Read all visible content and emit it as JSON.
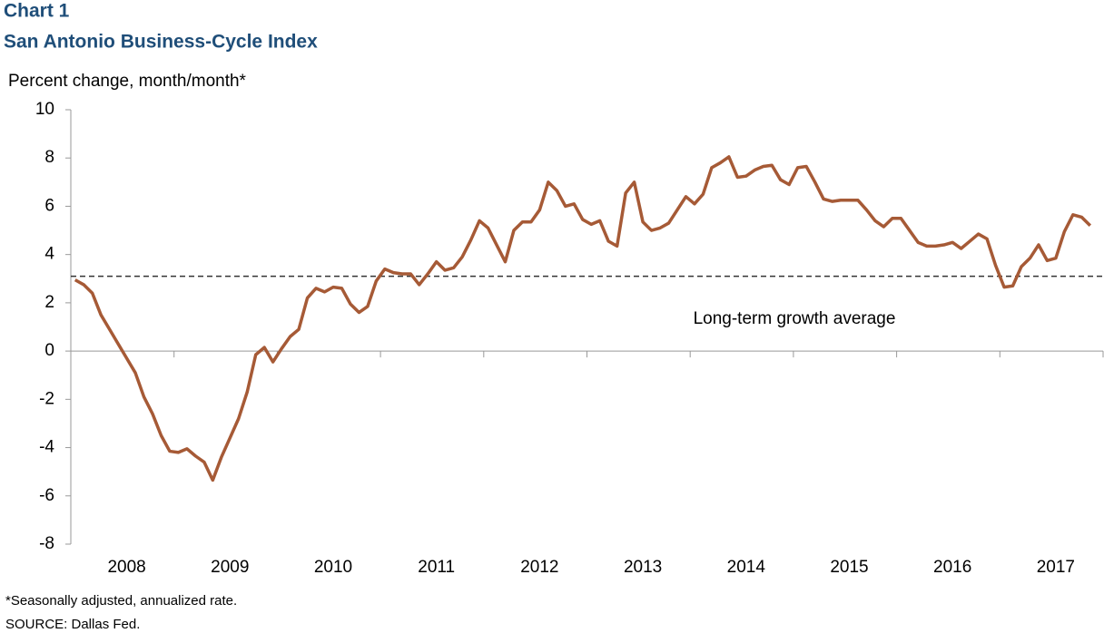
{
  "chart_data": {
    "type": "line",
    "title": "Chart 1",
    "subtitle": "San Antonio Business-Cycle Index",
    "y_label": "Percent change, month/month*",
    "categories": [
      null,
      null,
      null,
      null,
      null,
      null,
      "2008",
      null,
      null,
      null,
      null,
      null,
      null,
      null,
      null,
      null,
      null,
      null,
      "2009",
      null,
      null,
      null,
      null,
      null,
      null,
      null,
      null,
      null,
      null,
      null,
      "2010",
      null,
      null,
      null,
      null,
      null,
      null,
      null,
      null,
      null,
      null,
      null,
      "2011",
      null,
      null,
      null,
      null,
      null,
      null,
      null,
      null,
      null,
      null,
      null,
      "2012",
      null,
      null,
      null,
      null,
      null,
      null,
      null,
      null,
      null,
      null,
      null,
      "2013",
      null,
      null,
      null,
      null,
      null,
      null,
      null,
      null,
      null,
      null,
      null,
      "2014",
      null,
      null,
      null,
      null,
      null,
      null,
      null,
      null,
      null,
      null,
      null,
      "2015",
      null,
      null,
      null,
      null,
      null,
      null,
      null,
      null,
      null,
      null,
      null,
      "2016",
      null,
      null,
      null,
      null,
      null,
      null,
      null,
      null,
      null,
      null,
      null,
      "2017",
      null,
      null,
      null,
      null
    ],
    "series": [
      {
        "color": "#a65a36",
        "values": [
          2.95,
          2.75,
          2.4,
          1.5,
          0.9,
          0.3,
          -0.3,
          -0.9,
          -1.9,
          -2.6,
          -3.5,
          -4.15,
          -4.2,
          -4.05,
          -4.35,
          -4.6,
          -5.35,
          -4.4,
          -3.6,
          -2.8,
          -1.7,
          -0.15,
          0.15,
          -0.45,
          0.1,
          0.6,
          0.9,
          2.2,
          2.6,
          2.45,
          2.65,
          2.6,
          1.95,
          1.6,
          1.85,
          2.9,
          3.4,
          3.25,
          3.2,
          3.2,
          2.75,
          3.2,
          3.7,
          3.35,
          3.45,
          3.9,
          4.6,
          5.4,
          5.1,
          4.4,
          3.7,
          5.0,
          5.35,
          5.35,
          5.85,
          7.0,
          6.65,
          6.0,
          6.1,
          5.45,
          5.25,
          5.4,
          4.55,
          4.35,
          6.55,
          7.0,
          5.35,
          5.0,
          5.1,
          5.3,
          5.85,
          6.4,
          6.1,
          6.5,
          7.6,
          7.8,
          8.05,
          7.2,
          7.25,
          7.5,
          7.65,
          7.7,
          7.1,
          6.9,
          7.6,
          7.65,
          7.0,
          6.3,
          6.2,
          6.25,
          6.25,
          6.25,
          5.85,
          5.4,
          5.15,
          5.5,
          5.5,
          5.0,
          4.5,
          4.35,
          4.35,
          4.4,
          4.5,
          4.25,
          4.55,
          4.85,
          4.65,
          3.55,
          2.65,
          2.7,
          3.5,
          3.85,
          4.4,
          3.75,
          3.85,
          4.95,
          5.65,
          5.55,
          5.2
        ]
      }
    ],
    "reference_line": {
      "value": 3.1,
      "label": "Long-term growth average"
    },
    "ylim": [
      -8,
      10
    ],
    "yticks": [
      -8,
      -6,
      -4,
      -2,
      0,
      2,
      4,
      6,
      8,
      10
    ],
    "notes": [
      "*Seasonally adjusted, annualized rate.",
      "SOURCE: Dallas Fed."
    ]
  }
}
